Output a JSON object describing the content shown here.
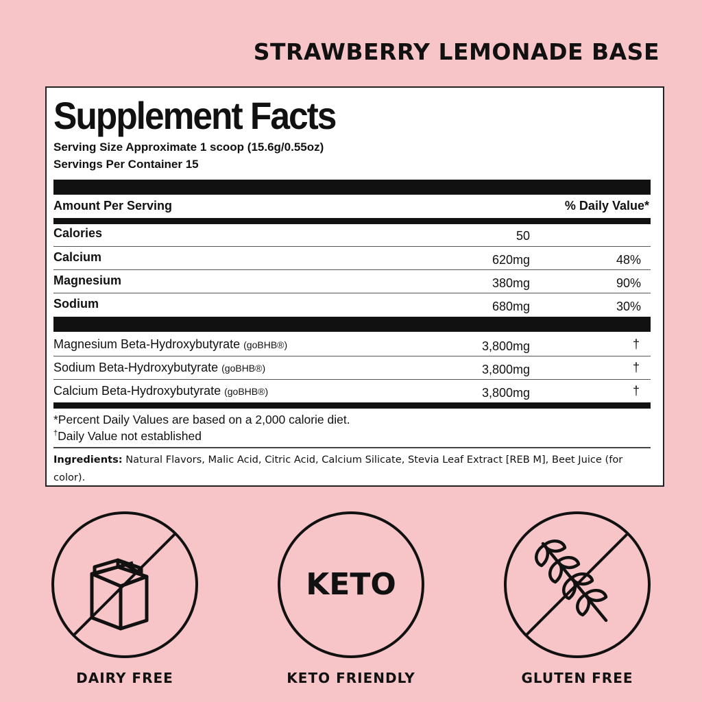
{
  "product_title": "STRAWBERRY LEMONADE BASE",
  "facts": {
    "title": "Supplement Facts",
    "serving_size": "Serving Size Approximate 1 scoop (15.6g/0.55oz)",
    "servings_per_container": "Servings Per Container 15",
    "amount_header": "Amount Per Serving",
    "dv_header": "% Daily Value*",
    "nutrients": [
      {
        "label": "Calories",
        "amount": "50",
        "dv": ""
      },
      {
        "label": "Calcium",
        "amount": "620mg",
        "dv": "48%"
      },
      {
        "label": "Magnesium",
        "amount": "380mg",
        "dv": "90%"
      },
      {
        "label": "Sodium",
        "amount": "680mg",
        "dv": "30%"
      }
    ],
    "blend": [
      {
        "label": "Magnesium Beta-Hydroxybutyrate",
        "tag": "(goBHB®)",
        "amount": "3,800mg",
        "dv": "†"
      },
      {
        "label": "Sodium Beta-Hydroxybutyrate",
        "tag": "(goBHB®)",
        "amount": "3,800mg",
        "dv": "†"
      },
      {
        "label": "Calcium Beta-Hydroxybutyrate",
        "tag": "(goBHB®)",
        "amount": "3,800mg",
        "dv": "†"
      }
    ],
    "footnote_1": "*Percent Daily Values are based on a 2,000 calorie diet.",
    "footnote_2_mark": "†",
    "footnote_2": "Daily Value not established",
    "ingredients_label": "Ingredients:",
    "ingredients_text": " Natural Flavors, Malic Acid, Citric Acid, Calcium Silicate, Stevia Leaf Extract [REB M], Beet Juice (for color)."
  },
  "badges": [
    {
      "icon": "milk-carton-icon",
      "label": "DAIRY FREE"
    },
    {
      "icon": "keto-icon",
      "text": "KETO",
      "label": "KETO FRIENDLY"
    },
    {
      "icon": "wheat-icon",
      "label": "GLUTEN FREE"
    }
  ],
  "colors": {
    "background": "#f7c5c8",
    "panel": "#ffffff",
    "ink": "#111111"
  }
}
